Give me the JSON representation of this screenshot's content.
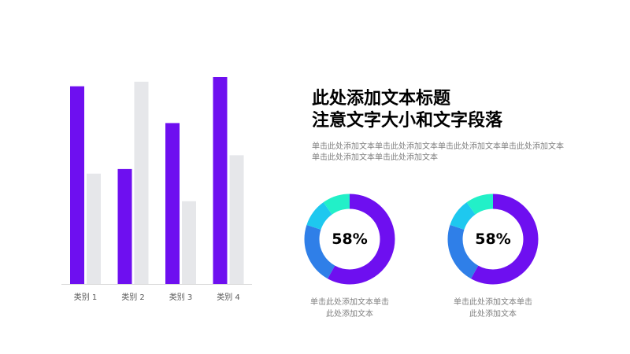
{
  "chart_data": {
    "type": "bar",
    "categories": [
      "类别 1",
      "类别 2",
      "类别 3",
      "类别 4"
    ],
    "series": [
      {
        "values": [
          4.3,
          2.5,
          3.5,
          4.5
        ]
      },
      {
        "values": [
          2.4,
          4.4,
          1.8,
          2.8
        ]
      }
    ],
    "ylim": [
      0,
      4.5
    ],
    "grid": false,
    "legend": "none"
  },
  "colors": {
    "primary": "#6e0ff0",
    "secondary": "#e6e7ea",
    "donut_blue": "#2f7fe8",
    "donut_cyan": "#1ec8ef",
    "donut_teal": "#22f0c8"
  },
  "title": {
    "line1": "此处添加文本标题",
    "line2": "注意文字大小和文字段落"
  },
  "subtitle": {
    "line1": "单击此处添加文本单击此处添加文本单击此处添加文本单击此处添加文本",
    "line2": "单击此处添加文本单击此处添加文本"
  },
  "donuts": [
    {
      "value_label": "58%",
      "segments": [
        58,
        22,
        10,
        10
      ],
      "caption_line1": "单击此处添加文本单击",
      "caption_line2": "此处添加文本"
    },
    {
      "value_label": "58%",
      "segments": [
        58,
        22,
        10,
        10
      ],
      "caption_line1": "单击此处添加文本单击",
      "caption_line2": "此处添加文本"
    }
  ]
}
